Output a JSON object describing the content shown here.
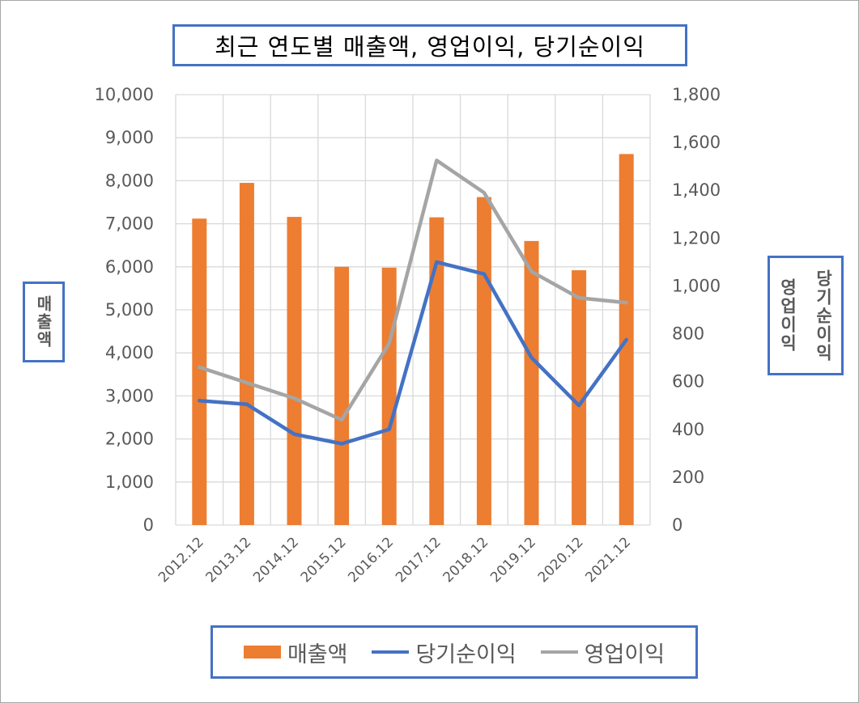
{
  "chart_data": {
    "type": "bar",
    "title": "최근 연도별 매출액, 영업이익, 당기순이익",
    "categories": [
      "2012.12",
      "2013.12",
      "2014.12",
      "2015.12",
      "2016.12",
      "2017.12",
      "2018.12",
      "2019.12",
      "2020.12",
      "2021.12"
    ],
    "ylabel_left": "매출액",
    "ylabel_right": [
      "당기순이익",
      "영업이익"
    ],
    "ylim_left": [
      0,
      10000
    ],
    "ylim_right": [
      0,
      1800
    ],
    "yticks_left": [
      "0",
      "1,000",
      "2,000",
      "3,000",
      "4,000",
      "5,000",
      "6,000",
      "7,000",
      "8,000",
      "9,000",
      "10,000"
    ],
    "yticks_right": [
      "0",
      "200",
      "400",
      "600",
      "800",
      "1,000",
      "1,200",
      "1,400",
      "1,600",
      "1,800"
    ],
    "grid": true,
    "legend_position": "bottom",
    "series": [
      {
        "name": "매출액",
        "type": "bar",
        "axis": "left",
        "color": "#ed7d31",
        "values": [
          7120,
          7950,
          7160,
          6000,
          5980,
          7150,
          7620,
          6600,
          5920,
          8620
        ]
      },
      {
        "name": "당기순이익",
        "type": "line",
        "axis": "right",
        "color": "#4472c4",
        "values": [
          520,
          505,
          380,
          340,
          400,
          1100,
          1050,
          700,
          500,
          775
        ]
      },
      {
        "name": "영업이익",
        "type": "line",
        "axis": "right",
        "color": "#a5a5a5",
        "values": [
          660,
          595,
          530,
          440,
          760,
          1525,
          1390,
          1060,
          950,
          930
        ]
      }
    ]
  }
}
